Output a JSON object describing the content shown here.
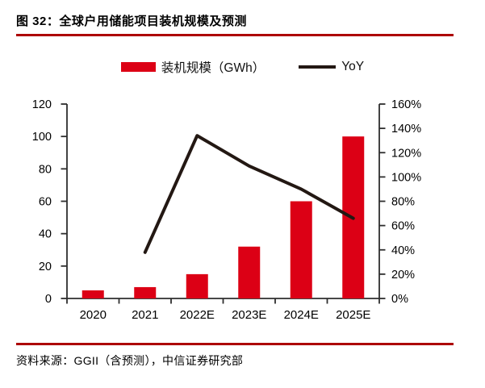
{
  "figure": {
    "title": "图 32：全球户用储能项目装机规模及预测",
    "source": "资料来源：GGII（含预测），中信证券研究部"
  },
  "legend": [
    {
      "label": "装机规模（GWh）",
      "marker": "bar-swatch"
    },
    {
      "label": "YoY",
      "marker": "line-swatch"
    }
  ],
  "colors": {
    "bar": "#dc0015",
    "line": "#231813",
    "rule": "#ad0000",
    "axis": "#2e2e2e",
    "text": "#000000"
  },
  "chart_data": {
    "type": "bar+line",
    "categories": [
      "2020",
      "2021",
      "2022E",
      "2023E",
      "2024E",
      "2025E"
    ],
    "series": [
      {
        "name": "装机规模（GWh）",
        "type": "bar",
        "axis": "left",
        "values": [
          5,
          7,
          15,
          32,
          60,
          100
        ]
      },
      {
        "name": "YoY",
        "type": "line",
        "axis": "right",
        "unit": "%",
        "values": [
          null,
          38,
          134,
          109,
          90,
          66
        ]
      }
    ],
    "left_axis": {
      "min": 0,
      "max": 120,
      "step": 20,
      "ticks": [
        "0",
        "20",
        "40",
        "60",
        "80",
        "100",
        "120"
      ]
    },
    "right_axis": {
      "min": 0,
      "max": 160,
      "step": 20,
      "ticks": [
        "0%",
        "20%",
        "40%",
        "60%",
        "80%",
        "100%",
        "120%",
        "140%",
        "160%"
      ]
    },
    "grid": false,
    "legend_position": "top-center"
  }
}
